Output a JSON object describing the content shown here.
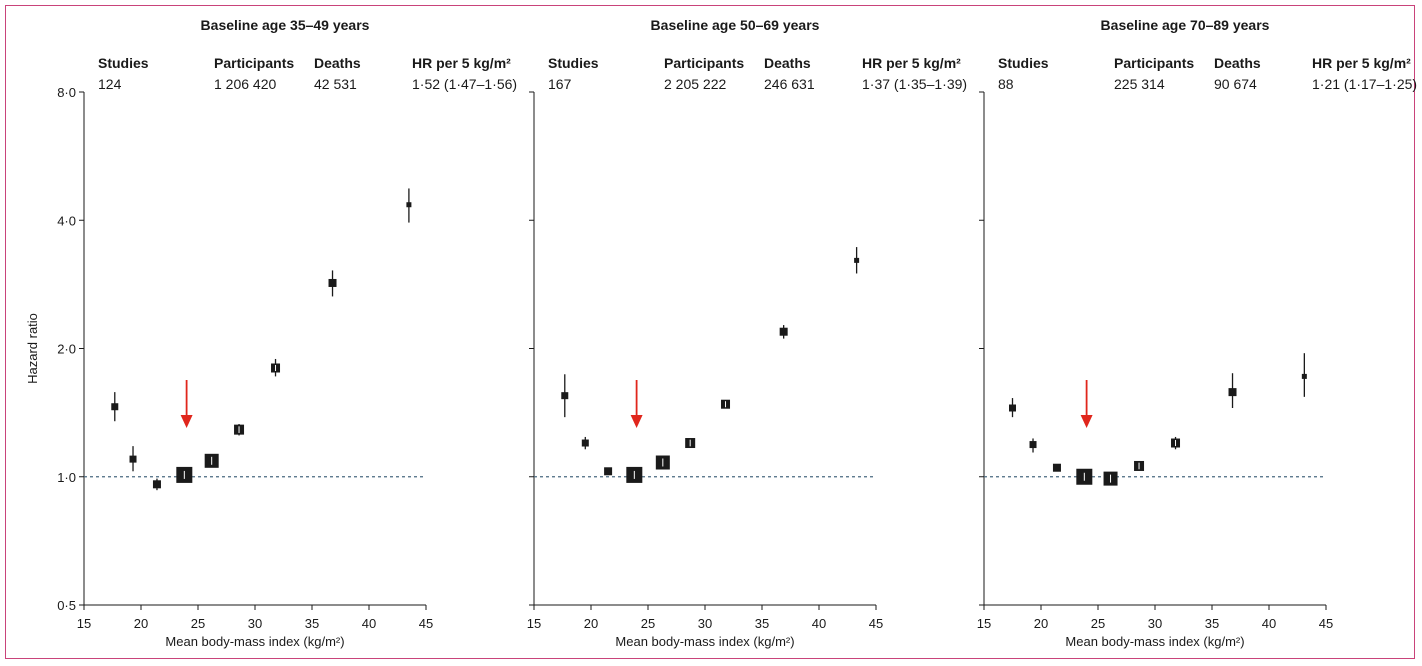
{
  "chart_data": [
    {
      "type": "scatter",
      "title": "Baseline age 35–49 years",
      "xlabel": "Mean body-mass index (kg/m²)",
      "ylabel": "Hazard ratio",
      "xlim": [
        15,
        45
      ],
      "ylim": [
        0.5,
        8.0
      ],
      "y_scale": "log",
      "x_ticks": [
        "15",
        "20",
        "25",
        "30",
        "35",
        "40",
        "45"
      ],
      "y_ticks": [
        "0·5",
        "1·0",
        "2·0",
        "4·0",
        "8·0"
      ],
      "reference_line": 1.0,
      "reference_arrow_x": 24,
      "summary": {
        "headers": [
          "Studies",
          "Participants",
          "Deaths",
          "HR per 5 kg/m²"
        ],
        "values": [
          "124",
          "1 206 420",
          "42 531",
          "1·52 (1·47–1·56)"
        ]
      },
      "points": [
        {
          "x": 17.7,
          "y": 1.46,
          "lo": 1.35,
          "hi": 1.58
        },
        {
          "x": 19.3,
          "y": 1.1,
          "lo": 1.03,
          "hi": 1.18
        },
        {
          "x": 21.4,
          "y": 0.96,
          "lo": 0.93,
          "hi": 0.99
        },
        {
          "x": 23.8,
          "y": 1.01,
          "lo": 0.99,
          "hi": 1.03
        },
        {
          "x": 26.2,
          "y": 1.09,
          "lo": 1.07,
          "hi": 1.11
        },
        {
          "x": 28.6,
          "y": 1.29,
          "lo": 1.25,
          "hi": 1.33
        },
        {
          "x": 31.8,
          "y": 1.8,
          "lo": 1.72,
          "hi": 1.89
        },
        {
          "x": 36.8,
          "y": 2.85,
          "lo": 2.65,
          "hi": 3.05
        },
        {
          "x": 43.5,
          "y": 4.35,
          "lo": 3.95,
          "hi": 4.75
        }
      ]
    },
    {
      "type": "scatter",
      "title": "Baseline age 50–69 years",
      "xlabel": "Mean body-mass index (kg/m²)",
      "ylabel": "",
      "xlim": [
        15,
        45
      ],
      "ylim": [
        0.5,
        8.0
      ],
      "y_scale": "log",
      "x_ticks": [
        "15",
        "20",
        "25",
        "30",
        "35",
        "40",
        "45"
      ],
      "reference_line": 1.0,
      "reference_arrow_x": 24,
      "summary": {
        "headers": [
          "Studies",
          "Participants",
          "Deaths",
          "HR per 5 kg/m²"
        ],
        "values": [
          "167",
          "2 205 222",
          "246 631",
          "1·37 (1·35–1·39)"
        ]
      },
      "points": [
        {
          "x": 17.7,
          "y": 1.55,
          "lo": 1.38,
          "hi": 1.74
        },
        {
          "x": 19.5,
          "y": 1.2,
          "lo": 1.16,
          "hi": 1.24
        },
        {
          "x": 21.5,
          "y": 1.03,
          "lo": 1.02,
          "hi": 1.05
        },
        {
          "x": 23.8,
          "y": 1.01,
          "lo": 1.0,
          "hi": 1.02
        },
        {
          "x": 26.3,
          "y": 1.08,
          "lo": 1.07,
          "hi": 1.09
        },
        {
          "x": 28.7,
          "y": 1.2,
          "lo": 1.18,
          "hi": 1.22
        },
        {
          "x": 31.8,
          "y": 1.48,
          "lo": 1.45,
          "hi": 1.51
        },
        {
          "x": 36.9,
          "y": 2.19,
          "lo": 2.11,
          "hi": 2.27
        },
        {
          "x": 43.3,
          "y": 3.22,
          "lo": 3.0,
          "hi": 3.46
        }
      ]
    },
    {
      "type": "scatter",
      "title": "Baseline age 70–89 years",
      "xlabel": "Mean body-mass index (kg/m²)",
      "ylabel": "",
      "xlim": [
        15,
        45
      ],
      "ylim": [
        0.5,
        8.0
      ],
      "y_scale": "log",
      "x_ticks": [
        "15",
        "20",
        "25",
        "30",
        "35",
        "40",
        "45"
      ],
      "reference_line": 1.0,
      "reference_arrow_x": 24,
      "summary": {
        "headers": [
          "Studies",
          "Participants",
          "Deaths",
          "HR per 5 kg/m²"
        ],
        "values": [
          "88",
          "225 314",
          "90 674",
          "1·21 (1·17–1·25)"
        ]
      },
      "points": [
        {
          "x": 17.5,
          "y": 1.45,
          "lo": 1.38,
          "hi": 1.53
        },
        {
          "x": 19.3,
          "y": 1.19,
          "lo": 1.14,
          "hi": 1.23
        },
        {
          "x": 21.4,
          "y": 1.05,
          "lo": 1.03,
          "hi": 1.07
        },
        {
          "x": 23.8,
          "y": 1.0,
          "lo": 0.99,
          "hi": 1.01
        },
        {
          "x": 26.1,
          "y": 0.99,
          "lo": 0.98,
          "hi": 1.01
        },
        {
          "x": 28.6,
          "y": 1.06,
          "lo": 1.04,
          "hi": 1.08
        },
        {
          "x": 31.8,
          "y": 1.2,
          "lo": 1.16,
          "hi": 1.24
        },
        {
          "x": 36.8,
          "y": 1.58,
          "lo": 1.45,
          "hi": 1.75
        },
        {
          "x": 43.1,
          "y": 1.72,
          "lo": 1.54,
          "hi": 1.95
        }
      ]
    }
  ],
  "colors": {
    "border": "#c9437a",
    "marker": "#1a1a1a",
    "arrow": "#e0261c",
    "reference_line": "#4a6a80"
  }
}
